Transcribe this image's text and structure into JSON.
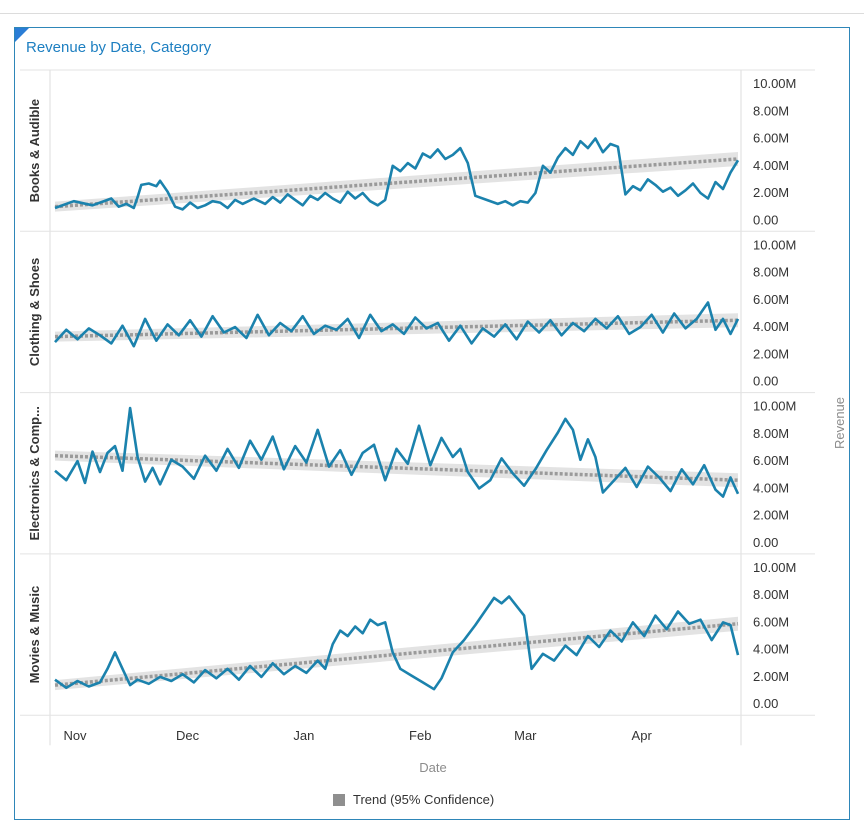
{
  "title": "Revenue by Date, Category",
  "colors": {
    "series": "#1b82ad",
    "trend": "#9a9a9a",
    "band": "#d9d9d9",
    "title": "#1d7fc1",
    "frame": "#2e86b8"
  },
  "legend": {
    "label": "Trend (95% Confidence)"
  },
  "chart_data": {
    "type": "line",
    "title": "Revenue by Date, Category",
    "xlabel": "Date",
    "ylabel": "Revenue",
    "x_ticks": [
      "Nov",
      "Dec",
      "Jan",
      "Feb",
      "Mar",
      "Apr"
    ],
    "y_ticks": [
      "10.00M",
      "8.00M",
      "6.00M",
      "4.00M",
      "2.00M",
      "0.00"
    ],
    "ylim": [
      0,
      10
    ],
    "y_unit": "M",
    "x_range_days": [
      0,
      182
    ],
    "grid": false,
    "legend_position": "bottom",
    "panels": [
      {
        "category": "Books & Audible",
        "trend": [
          1.0,
          4.5
        ],
        "series_points": [
          [
            0,
            0.9
          ],
          [
            5,
            1.4
          ],
          [
            10,
            1.1
          ],
          [
            12,
            1.3
          ],
          [
            15,
            1.6
          ],
          [
            17,
            1.0
          ],
          [
            19,
            1.2
          ],
          [
            21,
            0.9
          ],
          [
            22,
            1.7
          ],
          [
            23,
            2.6
          ],
          [
            25,
            2.7
          ],
          [
            27,
            2.5
          ],
          [
            28,
            2.9
          ],
          [
            30,
            2.1
          ],
          [
            32,
            1.0
          ],
          [
            34,
            0.8
          ],
          [
            36,
            1.3
          ],
          [
            38,
            0.9
          ],
          [
            40,
            1.1
          ],
          [
            42,
            1.4
          ],
          [
            44,
            1.3
          ],
          [
            46,
            0.9
          ],
          [
            48,
            1.5
          ],
          [
            50,
            1.2
          ],
          [
            53,
            1.6
          ],
          [
            56,
            1.2
          ],
          [
            58,
            1.7
          ],
          [
            60,
            1.3
          ],
          [
            62,
            1.9
          ],
          [
            64,
            1.5
          ],
          [
            66,
            1.1
          ],
          [
            68,
            1.8
          ],
          [
            70,
            1.5
          ],
          [
            72,
            2.0
          ],
          [
            74,
            1.6
          ],
          [
            76,
            1.3
          ],
          [
            78,
            2.1
          ],
          [
            80,
            1.6
          ],
          [
            82,
            2.0
          ],
          [
            84,
            1.4
          ],
          [
            86,
            1.1
          ],
          [
            88,
            1.5
          ],
          [
            90,
            4.0
          ],
          [
            92,
            3.6
          ],
          [
            94,
            4.2
          ],
          [
            96,
            3.8
          ],
          [
            98,
            4.9
          ],
          [
            100,
            4.6
          ],
          [
            102,
            5.2
          ],
          [
            104,
            4.5
          ],
          [
            106,
            4.8
          ],
          [
            108,
            5.3
          ],
          [
            110,
            4.2
          ],
          [
            112,
            1.8
          ],
          [
            115,
            1.5
          ],
          [
            118,
            1.2
          ],
          [
            120,
            1.4
          ],
          [
            122,
            1.1
          ],
          [
            124,
            1.4
          ],
          [
            126,
            1.3
          ],
          [
            128,
            2.0
          ],
          [
            130,
            4.0
          ],
          [
            132,
            3.5
          ],
          [
            134,
            4.6
          ],
          [
            136,
            5.3
          ],
          [
            138,
            4.8
          ],
          [
            140,
            5.8
          ],
          [
            142,
            5.3
          ],
          [
            144,
            6.0
          ],
          [
            146,
            5.0
          ],
          [
            148,
            5.6
          ],
          [
            150,
            5.4
          ],
          [
            152,
            1.9
          ],
          [
            154,
            2.5
          ],
          [
            156,
            2.2
          ],
          [
            158,
            3.0
          ],
          [
            160,
            2.6
          ],
          [
            162,
            2.1
          ],
          [
            164,
            2.4
          ],
          [
            166,
            1.8
          ],
          [
            168,
            2.2
          ],
          [
            170,
            2.7
          ],
          [
            172,
            2.0
          ],
          [
            174,
            1.6
          ],
          [
            176,
            2.8
          ],
          [
            178,
            2.3
          ],
          [
            180,
            3.5
          ],
          [
            182,
            4.4
          ]
        ]
      },
      {
        "category": "Clothing & Shoes",
        "trend": [
          3.3,
          4.5
        ],
        "series_points": [
          [
            0,
            2.9
          ],
          [
            3,
            3.8
          ],
          [
            6,
            3.1
          ],
          [
            9,
            3.9
          ],
          [
            12,
            3.4
          ],
          [
            15,
            2.8
          ],
          [
            18,
            4.1
          ],
          [
            21,
            2.6
          ],
          [
            24,
            4.6
          ],
          [
            27,
            3.0
          ],
          [
            30,
            4.2
          ],
          [
            33,
            3.4
          ],
          [
            36,
            4.5
          ],
          [
            39,
            3.3
          ],
          [
            42,
            4.8
          ],
          [
            45,
            3.6
          ],
          [
            48,
            4.0
          ],
          [
            51,
            3.2
          ],
          [
            54,
            4.9
          ],
          [
            57,
            3.4
          ],
          [
            60,
            4.3
          ],
          [
            63,
            3.7
          ],
          [
            66,
            4.8
          ],
          [
            69,
            3.5
          ],
          [
            72,
            4.1
          ],
          [
            75,
            3.8
          ],
          [
            78,
            4.6
          ],
          [
            81,
            3.2
          ],
          [
            84,
            4.9
          ],
          [
            87,
            3.7
          ],
          [
            90,
            4.2
          ],
          [
            93,
            3.5
          ],
          [
            96,
            4.7
          ],
          [
            99,
            3.9
          ],
          [
            102,
            4.3
          ],
          [
            105,
            3.0
          ],
          [
            108,
            4.1
          ],
          [
            111,
            2.8
          ],
          [
            114,
            3.9
          ],
          [
            117,
            3.3
          ],
          [
            120,
            4.2
          ],
          [
            123,
            3.1
          ],
          [
            126,
            4.4
          ],
          [
            129,
            3.6
          ],
          [
            132,
            4.5
          ],
          [
            135,
            3.4
          ],
          [
            138,
            4.3
          ],
          [
            141,
            3.7
          ],
          [
            144,
            4.6
          ],
          [
            147,
            3.9
          ],
          [
            150,
            4.8
          ],
          [
            153,
            3.5
          ],
          [
            156,
            4.0
          ],
          [
            159,
            4.9
          ],
          [
            162,
            3.6
          ],
          [
            165,
            5.0
          ],
          [
            168,
            3.9
          ],
          [
            171,
            4.6
          ],
          [
            174,
            5.8
          ],
          [
            176,
            3.8
          ],
          [
            178,
            4.6
          ],
          [
            180,
            3.5
          ],
          [
            182,
            4.6
          ]
        ]
      },
      {
        "category": "Electronics & Comp...",
        "trend": [
          6.4,
          4.6
        ],
        "series_points": [
          [
            0,
            5.3
          ],
          [
            3,
            4.6
          ],
          [
            6,
            6.0
          ],
          [
            8,
            4.4
          ],
          [
            10,
            6.7
          ],
          [
            12,
            5.2
          ],
          [
            14,
            6.6
          ],
          [
            16,
            7.1
          ],
          [
            18,
            5.3
          ],
          [
            20,
            9.9
          ],
          [
            22,
            6.3
          ],
          [
            24,
            4.5
          ],
          [
            26,
            5.5
          ],
          [
            28,
            4.3
          ],
          [
            31,
            6.1
          ],
          [
            34,
            5.6
          ],
          [
            37,
            4.7
          ],
          [
            40,
            6.4
          ],
          [
            43,
            5.3
          ],
          [
            46,
            6.9
          ],
          [
            49,
            5.5
          ],
          [
            52,
            7.5
          ],
          [
            55,
            6.1
          ],
          [
            58,
            7.8
          ],
          [
            61,
            5.4
          ],
          [
            64,
            7.1
          ],
          [
            67,
            5.9
          ],
          [
            70,
            8.3
          ],
          [
            73,
            5.6
          ],
          [
            76,
            6.8
          ],
          [
            79,
            5.0
          ],
          [
            82,
            6.6
          ],
          [
            85,
            7.2
          ],
          [
            88,
            4.6
          ],
          [
            91,
            6.9
          ],
          [
            94,
            5.8
          ],
          [
            97,
            8.6
          ],
          [
            100,
            5.7
          ],
          [
            103,
            7.7
          ],
          [
            106,
            6.3
          ],
          [
            108,
            6.9
          ],
          [
            110,
            5.2
          ],
          [
            113,
            4.0
          ],
          [
            116,
            4.6
          ],
          [
            119,
            6.2
          ],
          [
            122,
            5.1
          ],
          [
            125,
            4.2
          ],
          [
            128,
            5.4
          ],
          [
            131,
            6.8
          ],
          [
            134,
            8.1
          ],
          [
            136,
            9.1
          ],
          [
            138,
            8.3
          ],
          [
            140,
            6.1
          ],
          [
            142,
            7.6
          ],
          [
            144,
            6.3
          ],
          [
            146,
            3.7
          ],
          [
            149,
            4.6
          ],
          [
            152,
            5.5
          ],
          [
            155,
            4.1
          ],
          [
            158,
            5.6
          ],
          [
            161,
            4.8
          ],
          [
            164,
            3.8
          ],
          [
            167,
            5.4
          ],
          [
            170,
            4.3
          ],
          [
            173,
            5.7
          ],
          [
            176,
            3.9
          ],
          [
            178,
            3.4
          ],
          [
            180,
            4.8
          ],
          [
            182,
            3.6
          ]
        ]
      },
      {
        "category": "Movies & Music",
        "trend": [
          1.4,
          5.9
        ],
        "series_points": [
          [
            0,
            1.8
          ],
          [
            3,
            1.2
          ],
          [
            6,
            1.7
          ],
          [
            9,
            1.3
          ],
          [
            12,
            1.6
          ],
          [
            14,
            2.6
          ],
          [
            16,
            3.8
          ],
          [
            18,
            2.6
          ],
          [
            20,
            1.4
          ],
          [
            22,
            1.8
          ],
          [
            25,
            1.5
          ],
          [
            28,
            2.0
          ],
          [
            31,
            1.7
          ],
          [
            34,
            2.2
          ],
          [
            37,
            1.6
          ],
          [
            40,
            2.5
          ],
          [
            43,
            1.9
          ],
          [
            46,
            2.6
          ],
          [
            49,
            1.8
          ],
          [
            52,
            2.8
          ],
          [
            55,
            2.0
          ],
          [
            58,
            3.0
          ],
          [
            61,
            2.2
          ],
          [
            64,
            2.8
          ],
          [
            67,
            2.3
          ],
          [
            70,
            3.2
          ],
          [
            72,
            2.6
          ],
          [
            74,
            4.4
          ],
          [
            76,
            5.4
          ],
          [
            78,
            5.0
          ],
          [
            80,
            5.7
          ],
          [
            82,
            5.2
          ],
          [
            84,
            6.2
          ],
          [
            86,
            5.8
          ],
          [
            88,
            6.0
          ],
          [
            90,
            3.8
          ],
          [
            92,
            2.6
          ],
          [
            95,
            2.1
          ],
          [
            98,
            1.6
          ],
          [
            101,
            1.1
          ],
          [
            103,
            1.9
          ],
          [
            106,
            3.8
          ],
          [
            109,
            4.7
          ],
          [
            112,
            5.8
          ],
          [
            115,
            7.0
          ],
          [
            117,
            7.8
          ],
          [
            119,
            7.4
          ],
          [
            121,
            7.9
          ],
          [
            123,
            7.2
          ],
          [
            125,
            6.5
          ],
          [
            127,
            2.6
          ],
          [
            130,
            3.7
          ],
          [
            133,
            3.2
          ],
          [
            136,
            4.3
          ],
          [
            139,
            3.6
          ],
          [
            142,
            5.0
          ],
          [
            145,
            4.2
          ],
          [
            148,
            5.4
          ],
          [
            151,
            4.6
          ],
          [
            154,
            6.0
          ],
          [
            157,
            5.0
          ],
          [
            160,
            6.5
          ],
          [
            163,
            5.5
          ],
          [
            166,
            6.8
          ],
          [
            169,
            5.9
          ],
          [
            172,
            6.2
          ],
          [
            175,
            4.7
          ],
          [
            178,
            6.0
          ],
          [
            180,
            5.8
          ],
          [
            182,
            3.6
          ]
        ]
      }
    ]
  }
}
